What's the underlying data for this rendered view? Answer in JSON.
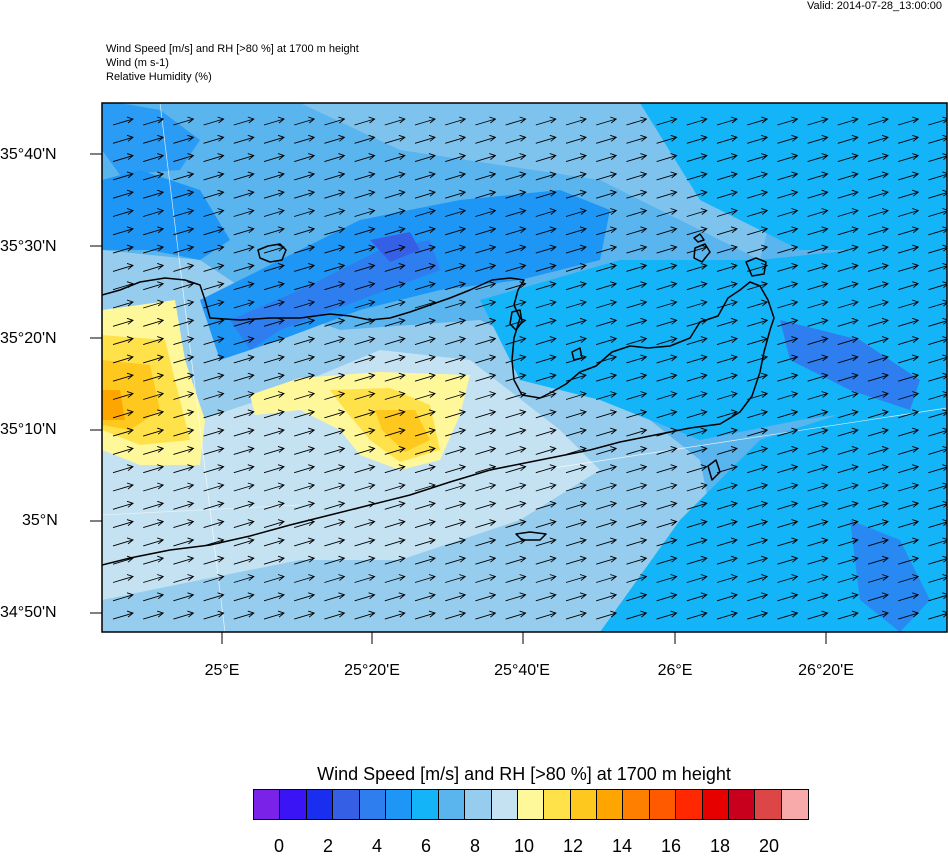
{
  "header": {
    "valid": "Valid: 2014-07-28_13:00:00",
    "title_lines": [
      "Wind Speed [m/s] and RH [>80 %] at 1700 m height",
      "Wind   (m s-1)",
      "Relative Humidity   (%)"
    ]
  },
  "map": {
    "lat_labels": [
      "35°40'N",
      "35°30'N",
      "35°20'N",
      "35°10'N",
      "35°N",
      "34°50'N"
    ],
    "lon_labels": [
      "25°E",
      "25°20'E",
      "25°40'E",
      "26°E",
      "26°20'E"
    ],
    "wind_direction": "west-southwest",
    "colors": {
      "coast": "#000000",
      "arrow": "#000000"
    }
  },
  "legend": {
    "title": "Wind Speed [m/s] and RH [>80 %] at 1700 m height",
    "colors": [
      "#7a22e8",
      "#3a14f4",
      "#1a2ef0",
      "#3560e6",
      "#2e7ef0",
      "#1e96f6",
      "#14b4f8",
      "#5ab4ee",
      "#96cdee",
      "#c4e2f2",
      "#fff89a",
      "#ffe14a",
      "#ffc81e",
      "#ffa500",
      "#ff8000",
      "#ff5a00",
      "#ff2800",
      "#e60000",
      "#c8001e",
      "#dc4646",
      "#f8aaaa"
    ],
    "tick_labels": [
      "0",
      "2",
      "4",
      "6",
      "8",
      "10",
      "12",
      "14",
      "16",
      "18",
      "20"
    ]
  }
}
